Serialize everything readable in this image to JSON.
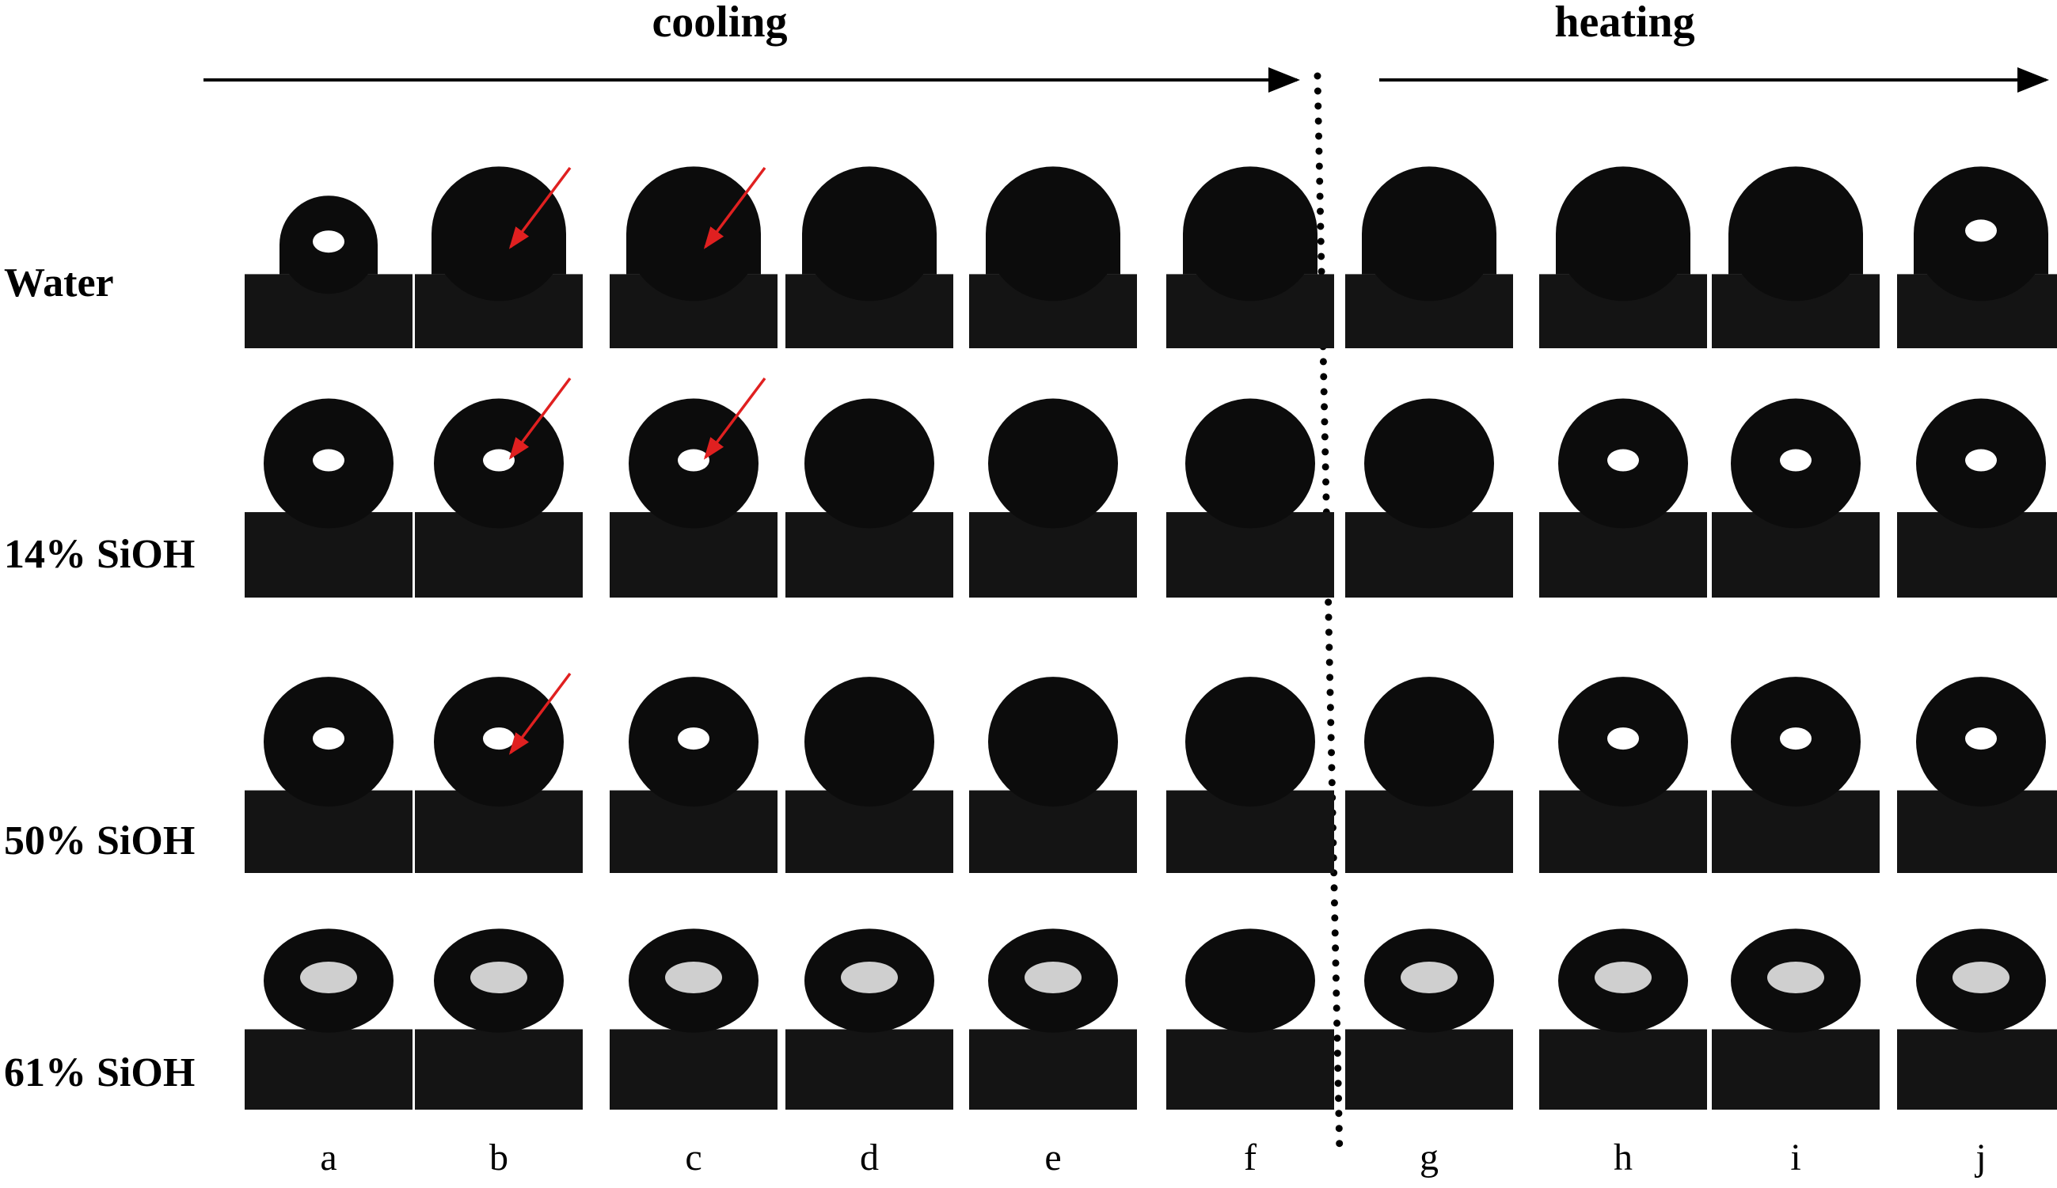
{
  "header": {
    "left": "cooling",
    "right": "heating"
  },
  "rows": [
    "Water",
    "14% SiOH",
    "50% SiOH",
    "61% SiOH"
  ],
  "columns": [
    "a",
    "b",
    "c",
    "d",
    "e",
    "f",
    "g",
    "h",
    "i",
    "j"
  ]
}
